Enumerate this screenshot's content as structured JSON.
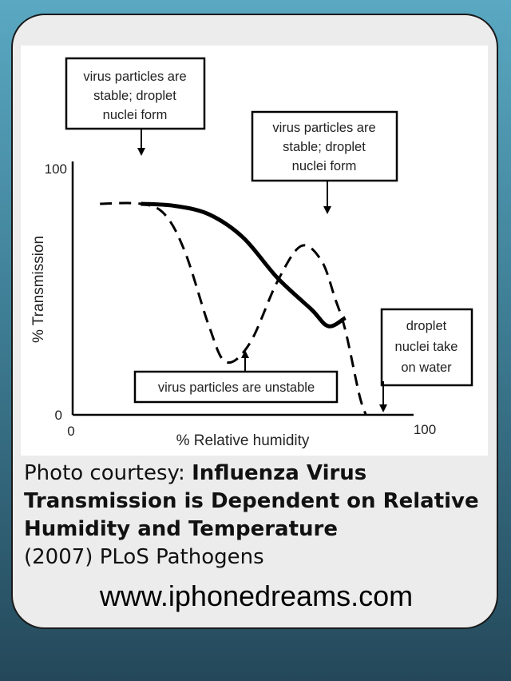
{
  "chart_data": {
    "type": "line",
    "xlabel": "% Relative humidity",
    "ylabel": "% Transmission",
    "xlim": [
      0,
      100
    ],
    "ylim": [
      0,
      100
    ],
    "x_ticks": [
      "0",
      "100"
    ],
    "y_ticks": [
      "0",
      "100"
    ],
    "series": [
      {
        "style": "solid",
        "color": "#000000",
        "x": [
          20,
          30,
          40,
          50,
          60,
          70,
          75,
          80
        ],
        "y": [
          100,
          99,
          95,
          84,
          65,
          50,
          42,
          46
        ]
      },
      {
        "style": "dashed",
        "color": "#000000",
        "x": [
          8,
          20,
          27,
          33,
          40,
          45,
          52,
          60,
          67,
          73,
          77,
          80,
          84,
          86
        ],
        "y": [
          100,
          100,
          95,
          77,
          42,
          25,
          34,
          63,
          80,
          73,
          55,
          40,
          10,
          0
        ]
      }
    ],
    "annotations": [
      "virus particles are stable; droplet nuclei form",
      "virus particles are stable; droplet nuclei form",
      "virus particles are unstable",
      "droplet nuclei take on water"
    ],
    "annotation_lines": [
      [
        "virus particles are",
        "stable; droplet",
        "nuclei form"
      ],
      [
        "virus particles are",
        "stable; droplet",
        "nuclei form"
      ],
      [
        "virus particles are unstable"
      ],
      [
        "droplet",
        "nuclei take",
        "on water"
      ]
    ]
  },
  "caption": {
    "prefix": "Photo courtesy: ",
    "bold_title": "Influenza Virus Transmission is Dependent on Relative Humidity and Temperature",
    "source": "(2007) PLoS Pathogens"
  },
  "site": "www.iphonedreams.com",
  "colors": {
    "frame": "#1a1a1a",
    "card": "#ececec",
    "bg_top": "#5aa8c2",
    "bg_bottom": "#24485a"
  }
}
